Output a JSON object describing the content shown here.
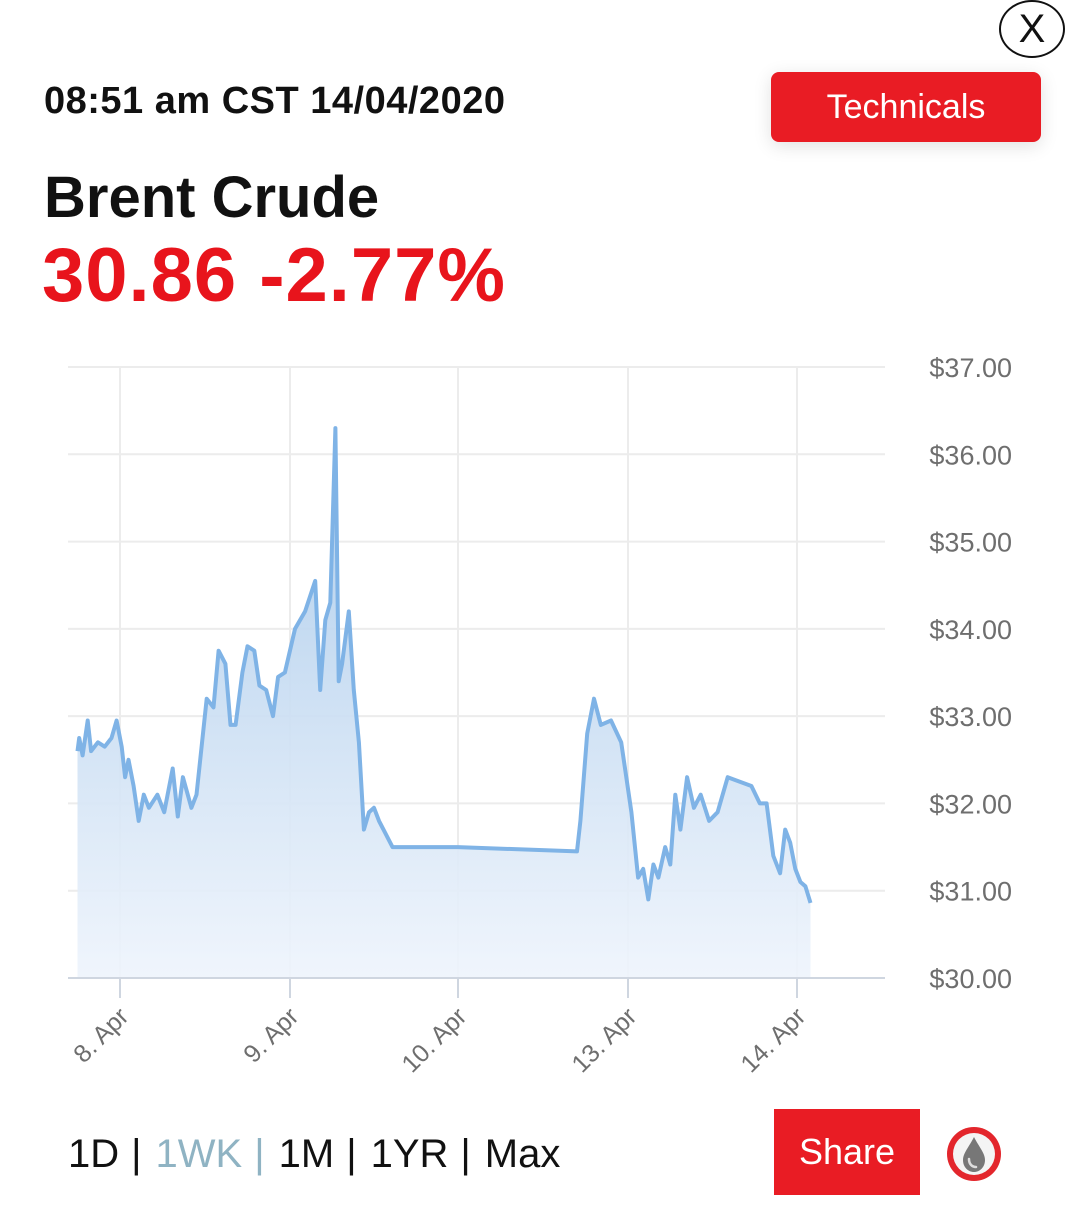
{
  "close_label": "X",
  "timestamp": "08:51 am CST 14/04/2020",
  "technicals_label": "Technicals",
  "instrument": "Brent Crude",
  "price": "30.86",
  "change": "-2.77%",
  "periods": [
    {
      "label": "1D",
      "sep": "|"
    },
    {
      "label": "1WK",
      "sep": "|"
    },
    {
      "label": "1M",
      "sep": "|"
    },
    {
      "label": "1YR",
      "sep": "|"
    },
    {
      "label": "Max",
      "sep": ""
    }
  ],
  "active_period": "1WK",
  "share_label": "Share",
  "logo_icon": "oil-drop-icon",
  "colors": {
    "accent_red": "#e91c24",
    "price_red": "#e8141c",
    "line_blue": "#7fb3e6",
    "active_period": "#8fb3c3"
  },
  "chart_data": {
    "type": "area",
    "title": "",
    "xlabel": "",
    "ylabel": "",
    "ylim": [
      30,
      37
    ],
    "y_ticks": [
      "$37.00",
      "$36.00",
      "$35.00",
      "$34.00",
      "$33.00",
      "$32.00",
      "$31.00",
      "$30.00"
    ],
    "x_ticks": [
      "8. Apr",
      "9. Apr",
      "10. Apr",
      "13. Apr",
      "14. Apr"
    ],
    "y_axis_position": "right",
    "grid": true,
    "series": [
      {
        "points": [
          [
            -0.25,
            32.6
          ],
          [
            -0.24,
            32.75
          ],
          [
            -0.22,
            32.55
          ],
          [
            -0.19,
            32.95
          ],
          [
            -0.17,
            32.6
          ],
          [
            -0.13,
            32.7
          ],
          [
            -0.09,
            32.65
          ],
          [
            -0.05,
            32.75
          ],
          [
            -0.02,
            32.95
          ],
          [
            0.01,
            32.65
          ],
          [
            0.03,
            32.3
          ],
          [
            0.05,
            32.5
          ],
          [
            0.08,
            32.2
          ],
          [
            0.11,
            31.8
          ],
          [
            0.14,
            32.1
          ],
          [
            0.17,
            31.95
          ],
          [
            0.22,
            32.1
          ],
          [
            0.26,
            31.9
          ],
          [
            0.31,
            32.4
          ],
          [
            0.34,
            31.85
          ],
          [
            0.37,
            32.3
          ],
          [
            0.42,
            31.95
          ],
          [
            0.45,
            32.1
          ],
          [
            0.51,
            33.2
          ],
          [
            0.55,
            33.1
          ],
          [
            0.58,
            33.75
          ],
          [
            0.62,
            33.6
          ],
          [
            0.65,
            32.9
          ],
          [
            0.68,
            32.9
          ],
          [
            0.72,
            33.5
          ],
          [
            0.75,
            33.8
          ],
          [
            0.79,
            33.75
          ],
          [
            0.82,
            33.35
          ],
          [
            0.86,
            33.3
          ],
          [
            0.9,
            33.0
          ],
          [
            0.93,
            33.45
          ],
          [
            0.97,
            33.5
          ],
          [
            1.03,
            34.0
          ],
          [
            1.09,
            34.2
          ],
          [
            1.15,
            34.55
          ],
          [
            1.18,
            33.3
          ],
          [
            1.21,
            34.1
          ],
          [
            1.24,
            34.3
          ],
          [
            1.27,
            36.3
          ],
          [
            1.29,
            33.4
          ],
          [
            1.31,
            33.6
          ],
          [
            1.35,
            34.2
          ],
          [
            1.38,
            33.3
          ],
          [
            1.41,
            32.7
          ],
          [
            1.44,
            31.7
          ],
          [
            1.47,
            31.9
          ],
          [
            1.5,
            31.95
          ],
          [
            1.53,
            31.8
          ],
          [
            1.61,
            31.5
          ],
          [
            2.0,
            31.5
          ],
          [
            2.7,
            31.45
          ],
          [
            2.72,
            31.8
          ],
          [
            2.76,
            32.8
          ],
          [
            2.8,
            33.2
          ],
          [
            2.84,
            32.9
          ],
          [
            2.9,
            32.95
          ],
          [
            2.96,
            32.7
          ],
          [
            3.02,
            31.9
          ],
          [
            3.06,
            31.15
          ],
          [
            3.09,
            31.25
          ],
          [
            3.12,
            30.9
          ],
          [
            3.15,
            31.3
          ],
          [
            3.18,
            31.15
          ],
          [
            3.22,
            31.5
          ],
          [
            3.25,
            31.3
          ],
          [
            3.28,
            32.1
          ],
          [
            3.31,
            31.7
          ],
          [
            3.35,
            32.3
          ],
          [
            3.39,
            31.95
          ],
          [
            3.43,
            32.1
          ],
          [
            3.48,
            31.8
          ],
          [
            3.53,
            31.9
          ],
          [
            3.59,
            32.3
          ],
          [
            3.66,
            32.25
          ],
          [
            3.73,
            32.2
          ],
          [
            3.78,
            32.0
          ],
          [
            3.82,
            32.0
          ],
          [
            3.86,
            31.4
          ],
          [
            3.9,
            31.2
          ],
          [
            3.93,
            31.7
          ],
          [
            3.96,
            31.55
          ],
          [
            3.99,
            31.25
          ],
          [
            4.02,
            31.1
          ],
          [
            4.05,
            31.05
          ],
          [
            4.08,
            30.86
          ]
        ]
      }
    ]
  }
}
